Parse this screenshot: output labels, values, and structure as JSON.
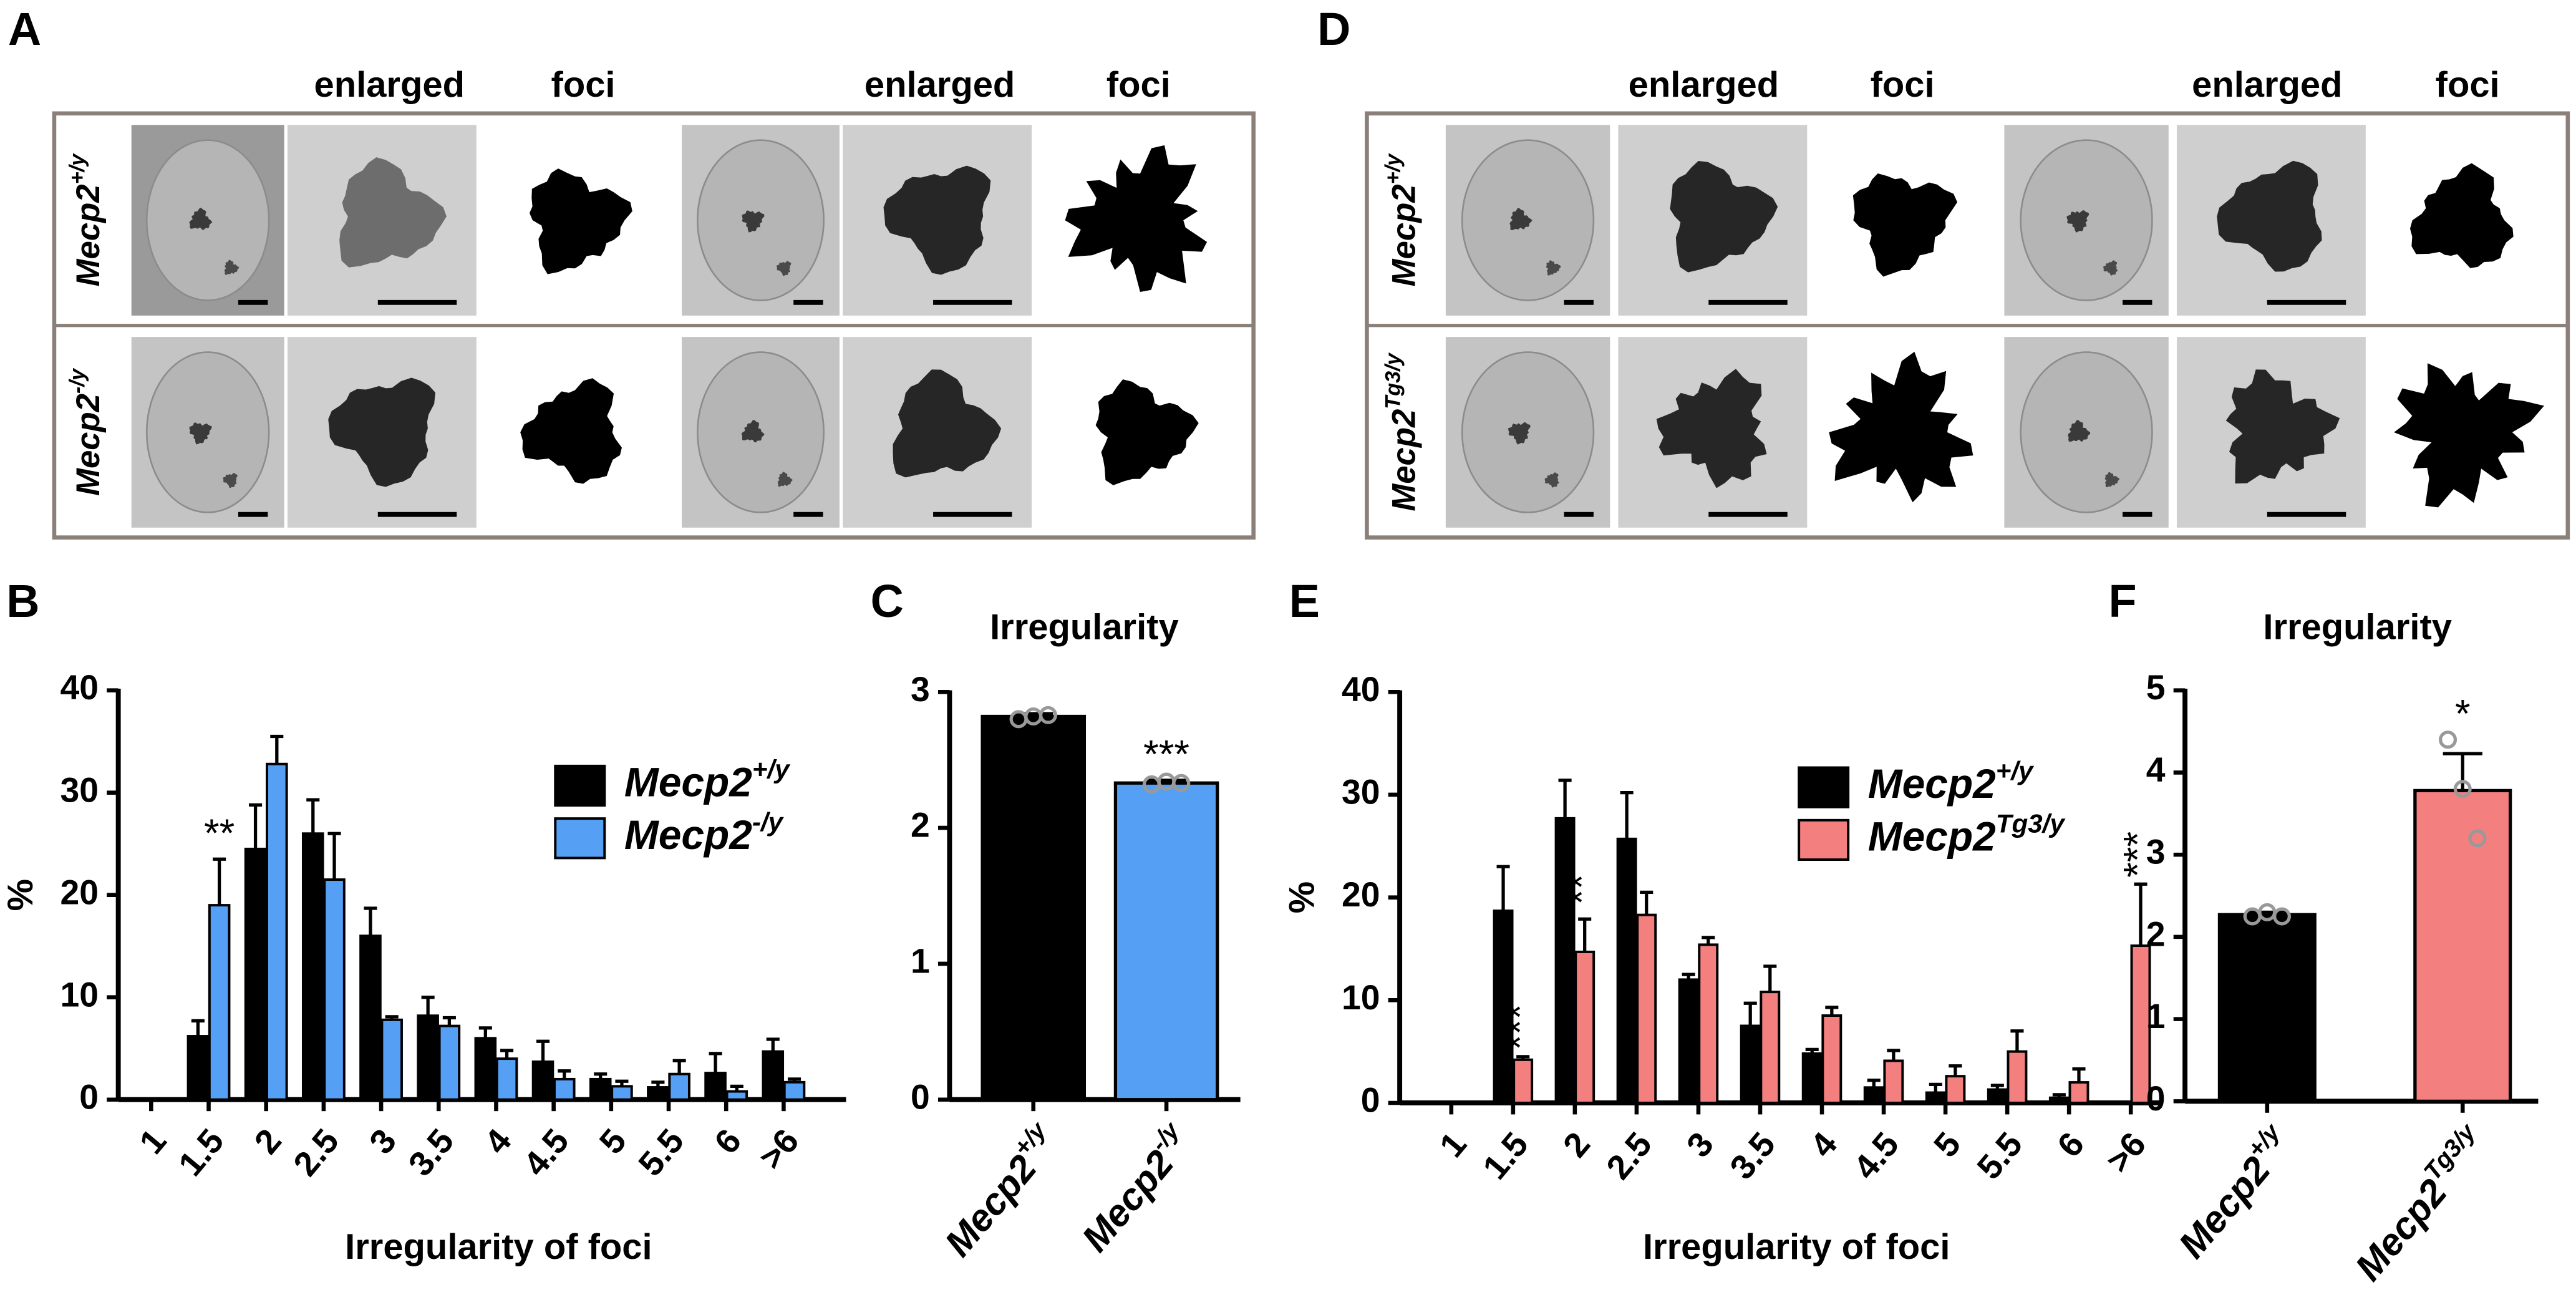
{
  "image_panels": [
    {
      "label": "A",
      "column_titles": [
        "enlarged",
        "foci",
        "enlarged",
        "foci"
      ],
      "row_labels": [
        [
          "Mecp2",
          "+/y"
        ],
        [
          "Mecp2",
          "-/y"
        ]
      ]
    },
    {
      "label": "D",
      "column_titles": [
        "enlarged",
        "foci",
        "enlarged",
        "foci"
      ],
      "row_labels": [
        [
          "Mecp2",
          "+/y"
        ],
        [
          "Mecp2",
          "Tg3/y"
        ]
      ]
    }
  ],
  "chart_data": [
    {
      "type": "bar",
      "panel": "B",
      "y_label": "%",
      "x_label": "Irregularity of foci",
      "categories": [
        "1",
        "1.5",
        "2",
        "2.5",
        "3",
        "3.5",
        "4",
        "4.5",
        "5",
        "5.5",
        "6",
        ">6"
      ],
      "series": [
        {
          "name": [
            "Mecp2",
            "+/y"
          ],
          "color": "#000000",
          "values": [
            0,
            6.2,
            24.5,
            26,
            16,
            8.2,
            6,
            3.7,
            2,
            1.2,
            2.6,
            4.7
          ],
          "errors": [
            0,
            1.5,
            4.3,
            3.3,
            2.7,
            1.8,
            1,
            2,
            0.5,
            0.5,
            1.9,
            1.2
          ],
          "significance": [
            null,
            null,
            null,
            null,
            null,
            null,
            null,
            null,
            null,
            null,
            null,
            null
          ]
        },
        {
          "name": [
            "Mecp2",
            "-/y"
          ],
          "color": "#55a0f5",
          "values": [
            0,
            19,
            32.8,
            21.5,
            7.8,
            7.2,
            4,
            2,
            1.3,
            2.5,
            0.8,
            1.7
          ],
          "errors": [
            0,
            4.5,
            2.7,
            4.5,
            0.3,
            0.8,
            0.8,
            0.8,
            0.5,
            1.3,
            0.5,
            0.3
          ],
          "significance": [
            null,
            "**",
            null,
            null,
            null,
            null,
            null,
            null,
            null,
            null,
            null,
            null
          ]
        }
      ],
      "ylim": [
        0,
        40
      ],
      "yticks": [
        0,
        10,
        20,
        30,
        40
      ],
      "legend": "upper right"
    },
    {
      "type": "bar",
      "panel": "C",
      "title": "Irregularity",
      "categories": [
        [
          "Mecp2",
          "+/y"
        ],
        [
          "Mecp2",
          "-/y"
        ]
      ],
      "values": [
        2.82,
        2.33
      ],
      "errors": [
        0.02,
        0.02
      ],
      "colors": [
        "#000000",
        "#55a0f5"
      ],
      "points": [
        [
          2.8,
          2.82,
          2.83
        ],
        [
          2.32,
          2.34,
          2.33
        ]
      ],
      "significance": [
        null,
        "***"
      ],
      "ylim": [
        0,
        3
      ],
      "yticks": [
        0,
        1,
        2,
        3
      ]
    },
    {
      "type": "bar",
      "panel": "E",
      "y_label": "%",
      "x_label": "Irregularity of foci",
      "categories": [
        "1",
        "1.5",
        "2",
        "2.5",
        "3",
        "3.5",
        "4",
        "4.5",
        "5",
        "5.5",
        "6",
        ">6"
      ],
      "series": [
        {
          "name": [
            "Mecp2",
            "+/y"
          ],
          "color": "#000000",
          "values": [
            0,
            18.7,
            27.7,
            25.7,
            12,
            7.5,
            4.8,
            1.5,
            1,
            1.3,
            0.5,
            0
          ],
          "errors": [
            0,
            4.3,
            3.7,
            4.5,
            0.5,
            2.2,
            0.4,
            0.7,
            0.8,
            0.4,
            0.3,
            0
          ],
          "significance": [
            null,
            null,
            null,
            null,
            null,
            null,
            null,
            null,
            null,
            null,
            null,
            null
          ]
        },
        {
          "name": [
            "Mecp2",
            "Tg3/y"
          ],
          "color": "#f47f7f",
          "values": [
            0,
            4.2,
            14.7,
            18.3,
            15.4,
            10.8,
            8.5,
            4.1,
            2.6,
            5,
            2,
            15.3
          ],
          "errors": [
            0,
            0.3,
            3.2,
            2.2,
            0.7,
            2.5,
            0.8,
            1,
            1,
            2,
            1.3,
            6
          ],
          "significance": [
            null,
            "***",
            "**",
            null,
            null,
            null,
            null,
            null,
            null,
            null,
            null,
            "***"
          ]
        }
      ],
      "ylim": [
        0,
        40
      ],
      "yticks": [
        0,
        10,
        20,
        30,
        40
      ],
      "legend": "upper right"
    },
    {
      "type": "bar",
      "panel": "F",
      "title": "Irregularity",
      "categories": [
        [
          "Mecp2",
          "+/y"
        ],
        [
          "Mecp2",
          "Tg3/y"
        ]
      ],
      "values": [
        2.27,
        3.78
      ],
      "errors": [
        0.03,
        0.45
      ],
      "colors": [
        "#000000",
        "#f47f7f"
      ],
      "points": [
        [
          2.25,
          2.3,
          2.25
        ],
        [
          4.4,
          3.8,
          3.2
        ]
      ],
      "significance": [
        null,
        "*"
      ],
      "ylim": [
        0,
        5
      ],
      "yticks": [
        0,
        1,
        2,
        3,
        4,
        5
      ]
    }
  ]
}
